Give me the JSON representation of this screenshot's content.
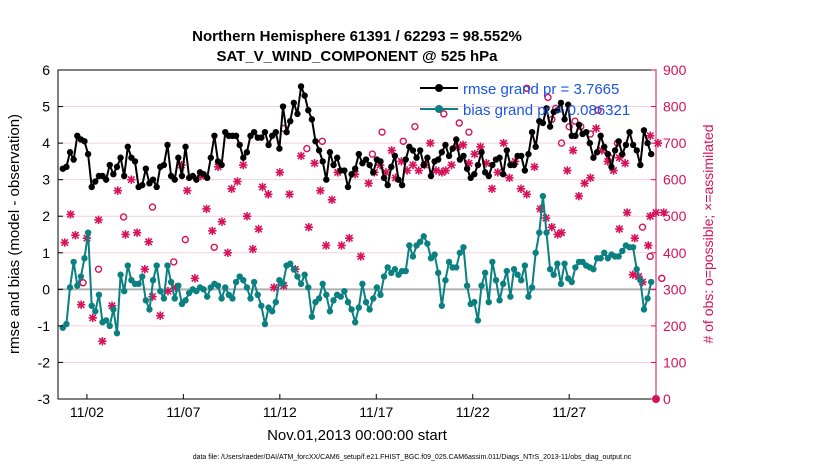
{
  "chart_data": {
    "type": "line",
    "title": "Northern Hemisphere 61391 / 62293 = 98.552%",
    "subtitle": "SAT_V_WIND_COMPONENT @ 525 hPa",
    "xlabel": "Nov.01,2013 00:00:00 start",
    "ylabel": "rmse and bias (model - observation)",
    "y2label": "# of obs: o=possible; ×=assimilated",
    "xlim": [
      0.5,
      31.5
    ],
    "ylim": [
      -3,
      6
    ],
    "y2lim": [
      0,
      900
    ],
    "x_ticks": [
      2,
      7,
      12,
      17,
      22,
      27
    ],
    "x_tick_labels": [
      "11/02",
      "11/07",
      "11/12",
      "11/17",
      "11/22",
      "11/27"
    ],
    "y_ticks": [
      "-3",
      "-2",
      "-1",
      "0",
      "1",
      "2",
      "3",
      "4",
      "5",
      "6"
    ],
    "y2_ticks": [
      "0",
      "100",
      "200",
      "300",
      "400",
      "500",
      "600",
      "700",
      "800",
      "900"
    ],
    "legend_position": "top-right",
    "colors": {
      "rmse": "#000000",
      "bias": "#0a8080",
      "obs": "#d6125a",
      "zero_line": "#b0b0b0"
    },
    "series": [
      {
        "name": "rmse grand pr = 3.7665",
        "key": "rmse",
        "values": [
          3.3,
          3.35,
          3.75,
          3.55,
          4.2,
          4.1,
          4.05,
          3.7,
          2.8,
          2.95,
          3.1,
          3.1,
          3.0,
          3.4,
          3.15,
          3.35,
          3.6,
          3.1,
          3.9,
          3.6,
          3.5,
          2.8,
          2.85,
          3.3,
          2.9,
          3.0,
          2.8,
          3.35,
          3.4,
          3.95,
          3.1,
          3.0,
          3.6,
          3.1,
          3.9,
          3.05,
          3.1,
          3.0,
          3.2,
          3.15,
          3.05,
          3.6,
          4.2,
          3.5,
          3.4,
          4.3,
          4.2,
          4.2,
          4.2,
          3.95,
          3.6,
          3.75,
          4.2,
          4.3,
          4.15,
          4.15,
          4.3,
          3.95,
          4.2,
          4.3,
          3.85,
          5.0,
          4.3,
          4.6,
          5.1,
          4.8,
          5.55,
          5.3,
          4.9,
          4.65,
          4.05,
          3.8,
          3.5,
          3.0,
          3.75,
          3.4,
          3.6,
          3.25,
          3.25,
          2.8,
          3.15,
          3.3,
          3.7,
          3.45,
          3.55,
          3.4,
          3.2,
          3.55,
          3.5,
          3.05,
          2.85,
          3.35,
          3.65,
          3.0,
          2.85,
          3.55,
          3.9,
          3.8,
          3.6,
          3.8,
          3.4,
          3.6,
          3.1,
          3.5,
          3.55,
          3.75,
          3.95,
          3.65,
          3.85,
          4.1,
          3.55,
          3.65,
          3.3,
          3.05,
          3.15,
          3.4,
          3.75,
          3.2,
          3.1,
          3.4,
          3.55,
          3.6,
          3.15,
          3.8,
          3.4,
          3.4,
          3.65,
          3.65,
          3.25,
          3.7,
          4.3,
          3.9,
          4.6,
          4.55,
          4.95,
          4.45,
          4.85,
          4.9,
          5.1,
          4.65,
          5.05,
          4.2,
          4.2,
          4.5,
          4.25,
          4.3,
          4.0,
          3.6,
          3.75,
          4.2,
          3.9,
          3.7,
          3.35,
          3.8,
          4.05,
          3.7,
          3.95,
          4.3,
          3.95,
          3.8,
          3.4,
          4.35,
          4.0,
          3.7
        ]
      },
      {
        "name": "bias grand pr = 0.086321",
        "key": "bias",
        "values": [
          -1.05,
          -0.95,
          0.05,
          0.75,
          0.1,
          0.35,
          0.85,
          1.55,
          -0.45,
          -0.6,
          -0.15,
          -0.9,
          -0.85,
          -1.0,
          -0.55,
          -1.2,
          0.4,
          -0.05,
          0.65,
          0.25,
          0.15,
          0.15,
          0.35,
          -0.3,
          -0.55,
          0.25,
          0.65,
          -0.05,
          -0.25,
          0.65,
          0.2,
          -0.25,
          0.1,
          -0.4,
          -0.3,
          -0.1,
          0.0,
          -0.05,
          0.05,
          0.0,
          -0.2,
          0.05,
          0.15,
          0.1,
          -0.25,
          0.05,
          -0.15,
          -0.25,
          0.2,
          0.35,
          0.25,
          0.05,
          -0.25,
          0.2,
          -0.15,
          -0.45,
          -0.95,
          -0.5,
          -0.6,
          -0.35,
          0.25,
          0.15,
          0.65,
          0.7,
          0.55,
          0.35,
          0.15,
          0.4,
          0.05,
          -0.75,
          -0.35,
          -0.25,
          0.15,
          -0.15,
          -0.6,
          -0.3,
          -0.15,
          -0.2,
          -0.05,
          -0.35,
          -0.55,
          -0.9,
          -0.5,
          0.15,
          -0.35,
          -0.55,
          -0.25,
          0.05,
          -0.15,
          0.35,
          0.6,
          0.45,
          0.55,
          0.4,
          0.5,
          0.5,
          1.2,
          0.9,
          1.2,
          1.3,
          1.45,
          1.25,
          0.85,
          0.95,
          0.45,
          -0.45,
          0.25,
          0.75,
          0.6,
          0.6,
          1.0,
          1.15,
          0.1,
          -0.4,
          -0.35,
          -0.85,
          0.1,
          0.45,
          -0.35,
          0.75,
          0.25,
          -0.3,
          0.15,
          0.5,
          -0.2,
          0.55,
          0.4,
          0.25,
          0.65,
          -0.2,
          0.05,
          1.0,
          1.55,
          2.55,
          1.55,
          0.55,
          0.4,
          0.7,
          0.15,
          0.7,
          0.3,
          0.2,
          0.6,
          0.75,
          0.75,
          0.65,
          0.6,
          0.55,
          0.85,
          0.85,
          1.0,
          0.85,
          0.95,
          0.9,
          0.9,
          1.05,
          1.2,
          1.15,
          1.15,
          0.55,
          0.25,
          -0.55,
          -0.25,
          0.2
        ]
      }
    ],
    "obs_counts": {
      "name": "# of obs",
      "assimilated": [
        [
          0.85,
          428
        ],
        [
          1.15,
          505
        ],
        [
          1.4,
          448
        ],
        [
          1.7,
          258
        ],
        [
          2.0,
          440
        ],
        [
          2.3,
          222
        ],
        [
          2.6,
          490
        ],
        [
          2.8,
          158
        ],
        [
          3.3,
          255
        ],
        [
          3.6,
          570
        ],
        [
          4.0,
          450
        ],
        [
          4.3,
          600
        ],
        [
          4.6,
          455
        ],
        [
          5.0,
          355
        ],
        [
          5.2,
          430
        ],
        [
          5.4,
          280
        ],
        [
          5.8,
          228
        ],
        [
          6.2,
          295
        ],
        [
          6.6,
          305
        ],
        [
          6.9,
          640
        ],
        [
          7.2,
          570
        ],
        [
          7.6,
          330
        ],
        [
          7.9,
          610
        ],
        [
          8.2,
          520
        ],
        [
          8.5,
          460
        ],
        [
          8.8,
          635
        ],
        [
          9.0,
          485
        ],
        [
          9.3,
          400
        ],
        [
          9.5,
          575
        ],
        [
          9.8,
          595
        ],
        [
          10.1,
          640
        ],
        [
          10.3,
          500
        ],
        [
          10.6,
          410
        ],
        [
          10.9,
          465
        ],
        [
          11.1,
          580
        ],
        [
          11.4,
          560
        ],
        [
          11.7,
          305
        ],
        [
          12.0,
          620
        ],
        [
          12.2,
          310
        ],
        [
          12.5,
          560
        ],
        [
          12.8,
          355
        ],
        [
          13.1,
          665
        ],
        [
          13.5,
          470
        ],
        [
          13.8,
          645
        ],
        [
          14.1,
          570
        ],
        [
          14.4,
          420
        ],
        [
          14.7,
          545
        ],
        [
          15.0,
          620
        ],
        [
          15.2,
          420
        ],
        [
          15.6,
          440
        ],
        [
          15.9,
          615
        ],
        [
          16.2,
          390
        ],
        [
          16.6,
          590
        ],
        [
          16.9,
          620
        ],
        [
          17.2,
          640
        ],
        [
          17.5,
          620
        ],
        [
          17.8,
          680
        ],
        [
          18.0,
          605
        ],
        [
          18.3,
          650
        ],
        [
          18.6,
          625
        ],
        [
          18.9,
          640
        ],
        [
          19.2,
          625
        ],
        [
          19.5,
          640
        ],
        [
          19.8,
          700
        ],
        [
          20.1,
          625
        ],
        [
          20.4,
          620
        ],
        [
          20.6,
          625
        ],
        [
          20.9,
          640
        ],
        [
          21.2,
          690
        ],
        [
          21.5,
          695
        ],
        [
          21.8,
          645
        ],
        [
          22.1,
          670
        ],
        [
          22.4,
          690
        ],
        [
          22.7,
          645
        ],
        [
          23.0,
          575
        ],
        [
          23.3,
          620
        ],
        [
          23.6,
          700
        ],
        [
          23.9,
          605
        ],
        [
          24.2,
          650
        ],
        [
          24.5,
          575
        ],
        [
          24.8,
          560
        ],
        [
          25.2,
          635
        ],
        [
          25.5,
          520
        ],
        [
          25.8,
          495
        ],
        [
          26.1,
          470
        ],
        [
          26.4,
          450
        ],
        [
          26.6,
          455
        ],
        [
          26.9,
          625
        ],
        [
          27.2,
          680
        ],
        [
          27.5,
          555
        ],
        [
          27.8,
          590
        ],
        [
          28.1,
          605
        ],
        [
          28.4,
          740
        ],
        [
          28.7,
          680
        ],
        [
          29.0,
          650
        ],
        [
          29.3,
          625
        ],
        [
          29.6,
          660
        ],
        [
          29.9,
          645
        ],
        [
          30.3,
          340
        ],
        [
          30.6,
          335
        ],
        [
          30.8,
          320
        ],
        [
          31.2,
          720
        ],
        [
          31.6,
          700
        ],
        [
          31.9,
          510
        ],
        [
          31.2,
          500
        ],
        [
          31.5,
          510
        ],
        [
          29.6,
          465
        ],
        [
          30.0,
          510
        ],
        [
          30.4,
          440
        ],
        [
          31.1,
          420
        ]
      ],
      "possible": [
        [
          1.8,
          318
        ],
        [
          2.6,
          355
        ],
        [
          3.9,
          498
        ],
        [
          5.4,
          525
        ],
        [
          6.5,
          375
        ],
        [
          7.1,
          436
        ],
        [
          8.6,
          415
        ],
        [
          12.2,
          740
        ],
        [
          13.4,
          685
        ],
        [
          14.2,
          705
        ],
        [
          16.8,
          670
        ],
        [
          17.3,
          730
        ],
        [
          18.4,
          705
        ],
        [
          19.0,
          745
        ],
        [
          20.5,
          780
        ],
        [
          21.3,
          755
        ],
        [
          21.8,
          730
        ],
        [
          24.8,
          850
        ],
        [
          25.9,
          825
        ],
        [
          26.1,
          765
        ],
        [
          26.3,
          795
        ],
        [
          26.6,
          700
        ],
        [
          27.0,
          745
        ],
        [
          27.3,
          760
        ],
        [
          27.6,
          745
        ],
        [
          28.1,
          725
        ],
        [
          28.5,
          790
        ],
        [
          29.1,
          660
        ],
        [
          29.5,
          700
        ],
        [
          30.8,
          470
        ],
        [
          31.2,
          390
        ],
        [
          31.8,
          330
        ]
      ]
    }
  },
  "footer": {
    "text": "data file: /Users/raeder/DAI/ATM_forcXX/CAM6_setup/f.e21.FHIST_BGC.f09_025.CAM6assim.011/Diags_NTrS_2013-11/obs_diag_output.nc"
  }
}
